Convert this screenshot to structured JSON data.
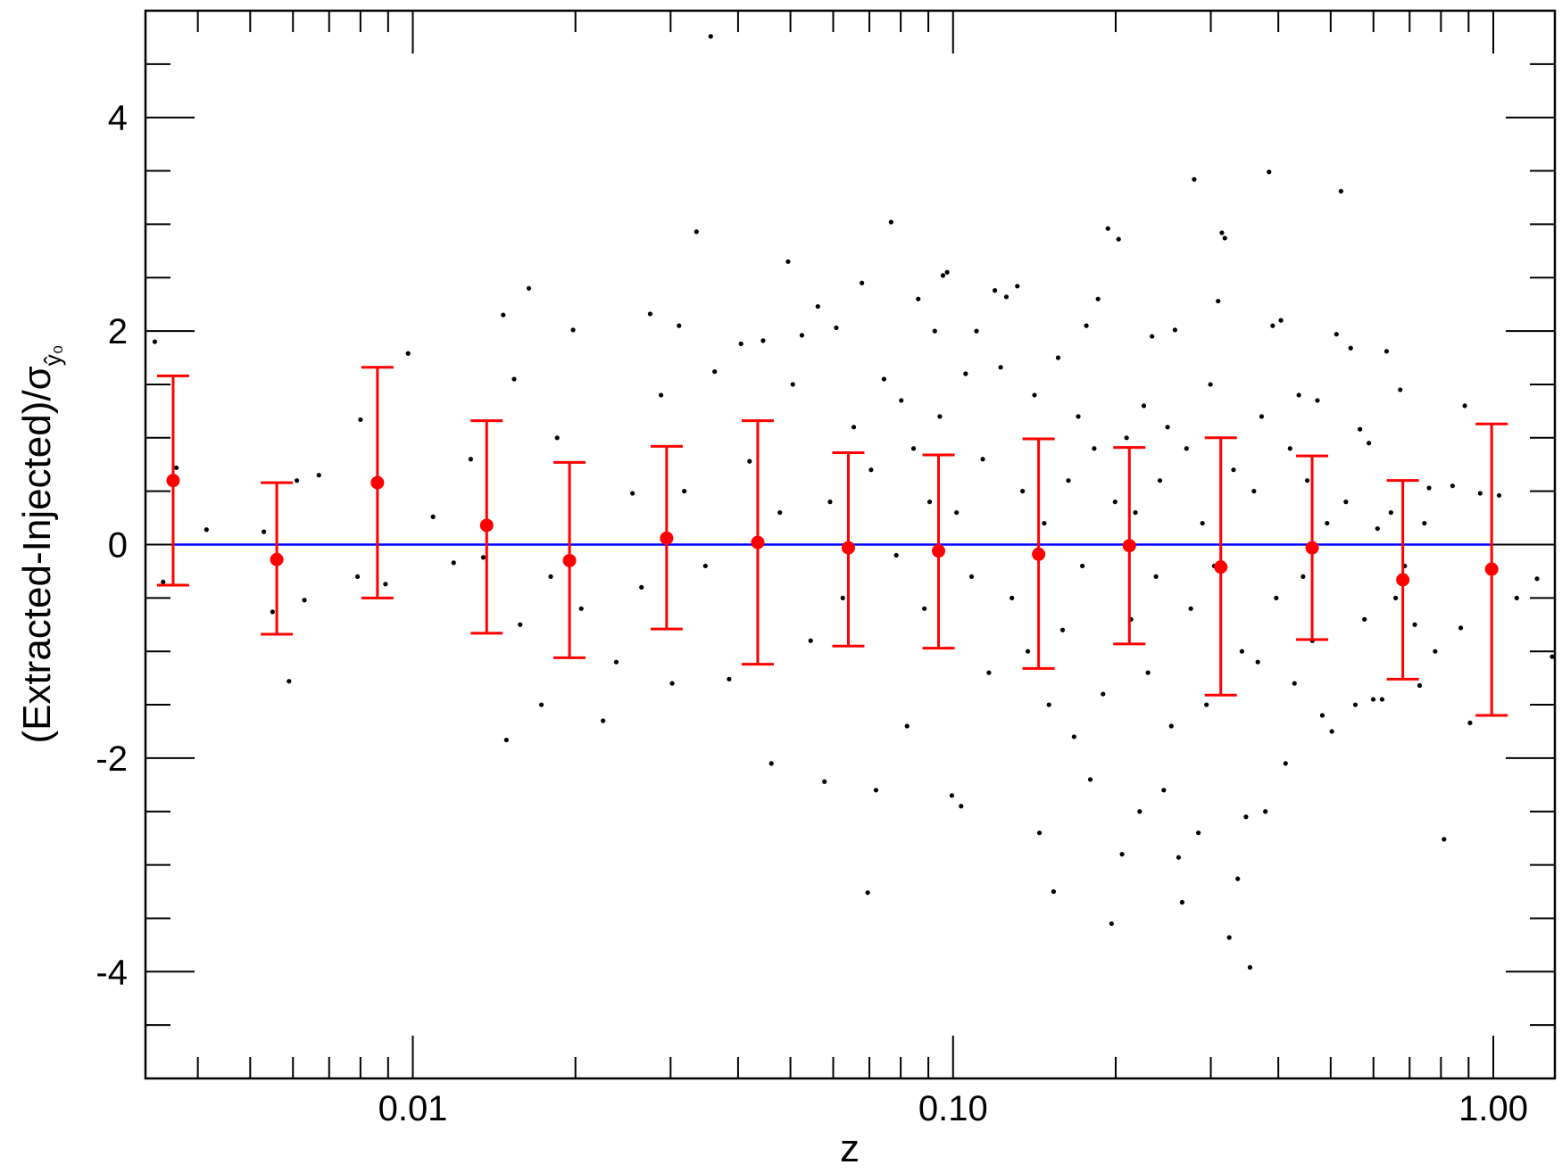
{
  "chart_data": {
    "type": "scatter",
    "xscale": "log",
    "xlabel": "z",
    "ylabel": "(Extracted-Injected)/σ",
    "ylabel_subscript": "ŷ₀",
    "xlim": [
      0.0032,
      1.3
    ],
    "ylim": [
      -5,
      5
    ],
    "grid": false,
    "x_tick_labels": [
      {
        "value": 0.01,
        "label": "0.01"
      },
      {
        "value": 0.1,
        "label": "0.10"
      },
      {
        "value": 1.0,
        "label": "1.00"
      }
    ],
    "y_tick_labels": [
      {
        "value": 4,
        "label": "4"
      },
      {
        "value": 2,
        "label": "2"
      },
      {
        "value": 0,
        "label": "0"
      },
      {
        "value": -2,
        "label": "-2"
      },
      {
        "value": -4,
        "label": "-4"
      }
    ],
    "reference_line": {
      "y": 0,
      "color": "#0000ff"
    },
    "binned_means": {
      "color": "#ff0000",
      "points": [
        {
          "x": 0.0036,
          "y": 0.6,
          "err_low": -0.38,
          "err_high": 1.58
        },
        {
          "x": 0.0056,
          "y": -0.14,
          "err_low": -0.84,
          "err_high": 0.58
        },
        {
          "x": 0.0086,
          "y": 0.58,
          "err_low": -0.5,
          "err_high": 1.66
        },
        {
          "x": 0.0137,
          "y": 0.18,
          "err_low": -0.83,
          "err_high": 1.16
        },
        {
          "x": 0.0195,
          "y": -0.15,
          "err_low": -1.06,
          "err_high": 0.77
        },
        {
          "x": 0.0295,
          "y": 0.06,
          "err_low": -0.79,
          "err_high": 0.92
        },
        {
          "x": 0.0435,
          "y": 0.02,
          "err_low": -1.12,
          "err_high": 1.16
        },
        {
          "x": 0.064,
          "y": -0.03,
          "err_low": -0.95,
          "err_high": 0.86
        },
        {
          "x": 0.094,
          "y": -0.06,
          "err_low": -0.97,
          "err_high": 0.84
        },
        {
          "x": 0.144,
          "y": -0.09,
          "err_low": -1.16,
          "err_high": 0.99
        },
        {
          "x": 0.212,
          "y": -0.01,
          "err_low": -0.93,
          "err_high": 0.91
        },
        {
          "x": 0.313,
          "y": -0.21,
          "err_low": -1.41,
          "err_high": 1.0
        },
        {
          "x": 0.462,
          "y": -0.03,
          "err_low": -0.89,
          "err_high": 0.83
        },
        {
          "x": 0.68,
          "y": -0.33,
          "err_low": -1.26,
          "err_high": 0.6
        },
        {
          "x": 0.993,
          "y": -0.23,
          "err_low": -1.6,
          "err_high": 1.13
        }
      ]
    },
    "scatter": {
      "color": "#000000",
      "points": [
        {
          "x": 0.00333,
          "y": 1.9
        },
        {
          "x": 0.00345,
          "y": -0.35
        },
        {
          "x": 0.00365,
          "y": 0.72
        },
        {
          "x": 0.00415,
          "y": 0.14
        },
        {
          "x": 0.0053,
          "y": 0.12
        },
        {
          "x": 0.0055,
          "y": -0.63
        },
        {
          "x": 0.0059,
          "y": -1.28
        },
        {
          "x": 0.0061,
          "y": 0.6
        },
        {
          "x": 0.0063,
          "y": -0.52
        },
        {
          "x": 0.0067,
          "y": 0.65
        },
        {
          "x": 0.0079,
          "y": -0.3
        },
        {
          "x": 0.008,
          "y": 1.17
        },
        {
          "x": 0.0089,
          "y": -0.37
        },
        {
          "x": 0.0098,
          "y": 1.79
        },
        {
          "x": 0.0109,
          "y": 0.26
        },
        {
          "x": 0.0119,
          "y": -0.17
        },
        {
          "x": 0.0128,
          "y": 0.8
        },
        {
          "x": 0.0135,
          "y": -0.12
        },
        {
          "x": 0.0147,
          "y": 2.15
        },
        {
          "x": 0.0149,
          "y": -1.83
        },
        {
          "x": 0.0154,
          "y": 1.55
        },
        {
          "x": 0.0158,
          "y": -0.75
        },
        {
          "x": 0.0164,
          "y": 2.4
        },
        {
          "x": 0.0173,
          "y": -1.5
        },
        {
          "x": 0.018,
          "y": -0.3
        },
        {
          "x": 0.0185,
          "y": 1.0
        },
        {
          "x": 0.0198,
          "y": 2.01
        },
        {
          "x": 0.0205,
          "y": -0.6
        },
        {
          "x": 0.0225,
          "y": -1.65
        },
        {
          "x": 0.0238,
          "y": -1.1
        },
        {
          "x": 0.0255,
          "y": 0.48
        },
        {
          "x": 0.0265,
          "y": -0.4
        },
        {
          "x": 0.0275,
          "y": 2.16
        },
        {
          "x": 0.0288,
          "y": 1.4
        },
        {
          "x": 0.0302,
          "y": -1.3
        },
        {
          "x": 0.0311,
          "y": 2.05
        },
        {
          "x": 0.0318,
          "y": 0.5
        },
        {
          "x": 0.0335,
          "y": 2.93
        },
        {
          "x": 0.0348,
          "y": -0.2
        },
        {
          "x": 0.0356,
          "y": 4.76
        },
        {
          "x": 0.0362,
          "y": 1.62
        },
        {
          "x": 0.0385,
          "y": -1.26
        },
        {
          "x": 0.0405,
          "y": 1.88
        },
        {
          "x": 0.042,
          "y": 0.78
        },
        {
          "x": 0.0445,
          "y": 1.91
        },
        {
          "x": 0.0461,
          "y": -2.05
        },
        {
          "x": 0.0478,
          "y": 0.3
        },
        {
          "x": 0.0495,
          "y": 2.65
        },
        {
          "x": 0.0505,
          "y": 1.5
        },
        {
          "x": 0.0525,
          "y": 1.96
        },
        {
          "x": 0.0545,
          "y": -0.9
        },
        {
          "x": 0.0562,
          "y": 2.23
        },
        {
          "x": 0.0578,
          "y": -2.22
        },
        {
          "x": 0.0592,
          "y": 0.4
        },
        {
          "x": 0.0608,
          "y": 2.03
        },
        {
          "x": 0.0625,
          "y": -0.5
        },
        {
          "x": 0.0655,
          "y": 1.1
        },
        {
          "x": 0.0678,
          "y": 2.45
        },
        {
          "x": 0.0695,
          "y": -3.26
        },
        {
          "x": 0.0705,
          "y": 0.7
        },
        {
          "x": 0.072,
          "y": -2.3
        },
        {
          "x": 0.0745,
          "y": 1.55
        },
        {
          "x": 0.0768,
          "y": 3.02
        },
        {
          "x": 0.0785,
          "y": -0.1
        },
        {
          "x": 0.0802,
          "y": 1.35
        },
        {
          "x": 0.0822,
          "y": -1.7
        },
        {
          "x": 0.0845,
          "y": 0.9
        },
        {
          "x": 0.0862,
          "y": 2.3
        },
        {
          "x": 0.0885,
          "y": -0.6
        },
        {
          "x": 0.0905,
          "y": 0.4
        },
        {
          "x": 0.0925,
          "y": 2.0
        },
        {
          "x": 0.0945,
          "y": 1.2
        },
        {
          "x": 0.0958,
          "y": 2.52
        },
        {
          "x": 0.0975,
          "y": 2.55
        },
        {
          "x": 0.0995,
          "y": -2.35
        },
        {
          "x": 0.1015,
          "y": 0.3
        },
        {
          "x": 0.1035,
          "y": -2.45
        },
        {
          "x": 0.1055,
          "y": 1.6
        },
        {
          "x": 0.1082,
          "y": -0.3
        },
        {
          "x": 0.1105,
          "y": 2.0
        },
        {
          "x": 0.1135,
          "y": 0.8
        },
        {
          "x": 0.1165,
          "y": -1.2
        },
        {
          "x": 0.1195,
          "y": 2.38
        },
        {
          "x": 0.1225,
          "y": 1.66
        },
        {
          "x": 0.1255,
          "y": 2.32
        },
        {
          "x": 0.1285,
          "y": -0.5
        },
        {
          "x": 0.1315,
          "y": 2.42
        },
        {
          "x": 0.1345,
          "y": 0.5
        },
        {
          "x": 0.1375,
          "y": -1.0
        },
        {
          "x": 0.1415,
          "y": 1.4
        },
        {
          "x": 0.1445,
          "y": -2.7
        },
        {
          "x": 0.1475,
          "y": 0.2
        },
        {
          "x": 0.1505,
          "y": -1.5
        },
        {
          "x": 0.1535,
          "y": -3.25
        },
        {
          "x": 0.1565,
          "y": 1.75
        },
        {
          "x": 0.1595,
          "y": -0.8
        },
        {
          "x": 0.1635,
          "y": 0.6
        },
        {
          "x": 0.1675,
          "y": -1.8
        },
        {
          "x": 0.1705,
          "y": 1.2
        },
        {
          "x": 0.1735,
          "y": -0.2
        },
        {
          "x": 0.1765,
          "y": 2.05
        },
        {
          "x": 0.1795,
          "y": -2.2
        },
        {
          "x": 0.1825,
          "y": 0.9
        },
        {
          "x": 0.1855,
          "y": 2.3
        },
        {
          "x": 0.1895,
          "y": -1.4
        },
        {
          "x": 0.1935,
          "y": 2.96
        },
        {
          "x": 0.1965,
          "y": -3.55
        },
        {
          "x": 0.1995,
          "y": 0.4
        },
        {
          "x": 0.2025,
          "y": 2.86
        },
        {
          "x": 0.2055,
          "y": -2.9
        },
        {
          "x": 0.2095,
          "y": 1.0
        },
        {
          "x": 0.2135,
          "y": -0.7
        },
        {
          "x": 0.2175,
          "y": 0.3
        },
        {
          "x": 0.2215,
          "y": -2.5
        },
        {
          "x": 0.2255,
          "y": 1.3
        },
        {
          "x": 0.2295,
          "y": -1.2
        },
        {
          "x": 0.2335,
          "y": 1.95
        },
        {
          "x": 0.2375,
          "y": -0.3
        },
        {
          "x": 0.2415,
          "y": 0.6
        },
        {
          "x": 0.2455,
          "y": -2.3
        },
        {
          "x": 0.2495,
          "y": 1.1
        },
        {
          "x": 0.2535,
          "y": -1.7
        },
        {
          "x": 0.2575,
          "y": 2.01
        },
        {
          "x": 0.2615,
          "y": -2.93
        },
        {
          "x": 0.2655,
          "y": -3.35
        },
        {
          "x": 0.2705,
          "y": 0.9
        },
        {
          "x": 0.2755,
          "y": -0.6
        },
        {
          "x": 0.2795,
          "y": 3.42
        },
        {
          "x": 0.2845,
          "y": -2.7
        },
        {
          "x": 0.2895,
          "y": 0.2
        },
        {
          "x": 0.2945,
          "y": -1.5
        },
        {
          "x": 0.2995,
          "y": 1.5
        },
        {
          "x": 0.3045,
          "y": -0.2
        },
        {
          "x": 0.3095,
          "y": 2.28
        },
        {
          "x": 0.3145,
          "y": 2.92
        },
        {
          "x": 0.3185,
          "y": 2.87
        },
        {
          "x": 0.3245,
          "y": -3.68
        },
        {
          "x": 0.3305,
          "y": 0.7
        },
        {
          "x": 0.3365,
          "y": -3.13
        },
        {
          "x": 0.3425,
          "y": -1.0
        },
        {
          "x": 0.3485,
          "y": -2.55
        },
        {
          "x": 0.3545,
          "y": -3.96
        },
        {
          "x": 0.3605,
          "y": 0.5
        },
        {
          "x": 0.3665,
          "y": -1.1
        },
        {
          "x": 0.3725,
          "y": 1.2
        },
        {
          "x": 0.3785,
          "y": -2.5
        },
        {
          "x": 0.3845,
          "y": 3.49
        },
        {
          "x": 0.3905,
          "y": 2.05
        },
        {
          "x": 0.3965,
          "y": -0.5
        },
        {
          "x": 0.4045,
          "y": 2.1
        },
        {
          "x": 0.4125,
          "y": -2.05
        },
        {
          "x": 0.4205,
          "y": 0.9
        },
        {
          "x": 0.4285,
          "y": -1.3
        },
        {
          "x": 0.4365,
          "y": 1.4
        },
        {
          "x": 0.4445,
          "y": -0.3
        },
        {
          "x": 0.4525,
          "y": 0.6
        },
        {
          "x": 0.4625,
          "y": -0.9
        },
        {
          "x": 0.4725,
          "y": 1.35
        },
        {
          "x": 0.4825,
          "y": -1.6
        },
        {
          "x": 0.4925,
          "y": 0.2
        },
        {
          "x": 0.5025,
          "y": -1.75
        },
        {
          "x": 0.5125,
          "y": 1.97
        },
        {
          "x": 0.5225,
          "y": 3.31
        },
        {
          "x": 0.5335,
          "y": 0.4
        },
        {
          "x": 0.5445,
          "y": 1.84
        },
        {
          "x": 0.5555,
          "y": -1.5
        },
        {
          "x": 0.5665,
          "y": 1.08
        },
        {
          "x": 0.5775,
          "y": -0.7
        },
        {
          "x": 0.5885,
          "y": 0.95
        },
        {
          "x": 0.5995,
          "y": -1.45
        },
        {
          "x": 0.6105,
          "y": 0.15
        },
        {
          "x": 0.6225,
          "y": -1.45
        },
        {
          "x": 0.6345,
          "y": 1.81
        },
        {
          "x": 0.6465,
          "y": 0.3
        },
        {
          "x": 0.6595,
          "y": -0.5
        },
        {
          "x": 0.6725,
          "y": 1.45
        },
        {
          "x": 0.6855,
          "y": -0.2
        },
        {
          "x": 0.7155,
          "y": -0.75
        },
        {
          "x": 0.7305,
          "y": -1.32
        },
        {
          "x": 0.7455,
          "y": 0.2
        },
        {
          "x": 0.7605,
          "y": 0.53
        },
        {
          "x": 0.7805,
          "y": -1.0
        },
        {
          "x": 0.8105,
          "y": -2.76
        },
        {
          "x": 0.8405,
          "y": 0.55
        },
        {
          "x": 0.8705,
          "y": -0.78
        },
        {
          "x": 0.8855,
          "y": 1.3
        },
        {
          "x": 0.9055,
          "y": -1.67
        },
        {
          "x": 0.9455,
          "y": 0.48
        },
        {
          "x": 1.025,
          "y": 0.46
        },
        {
          "x": 1.105,
          "y": -0.5
        },
        {
          "x": 1.205,
          "y": -0.32
        },
        {
          "x": 1.285,
          "y": -1.05
        }
      ]
    }
  }
}
